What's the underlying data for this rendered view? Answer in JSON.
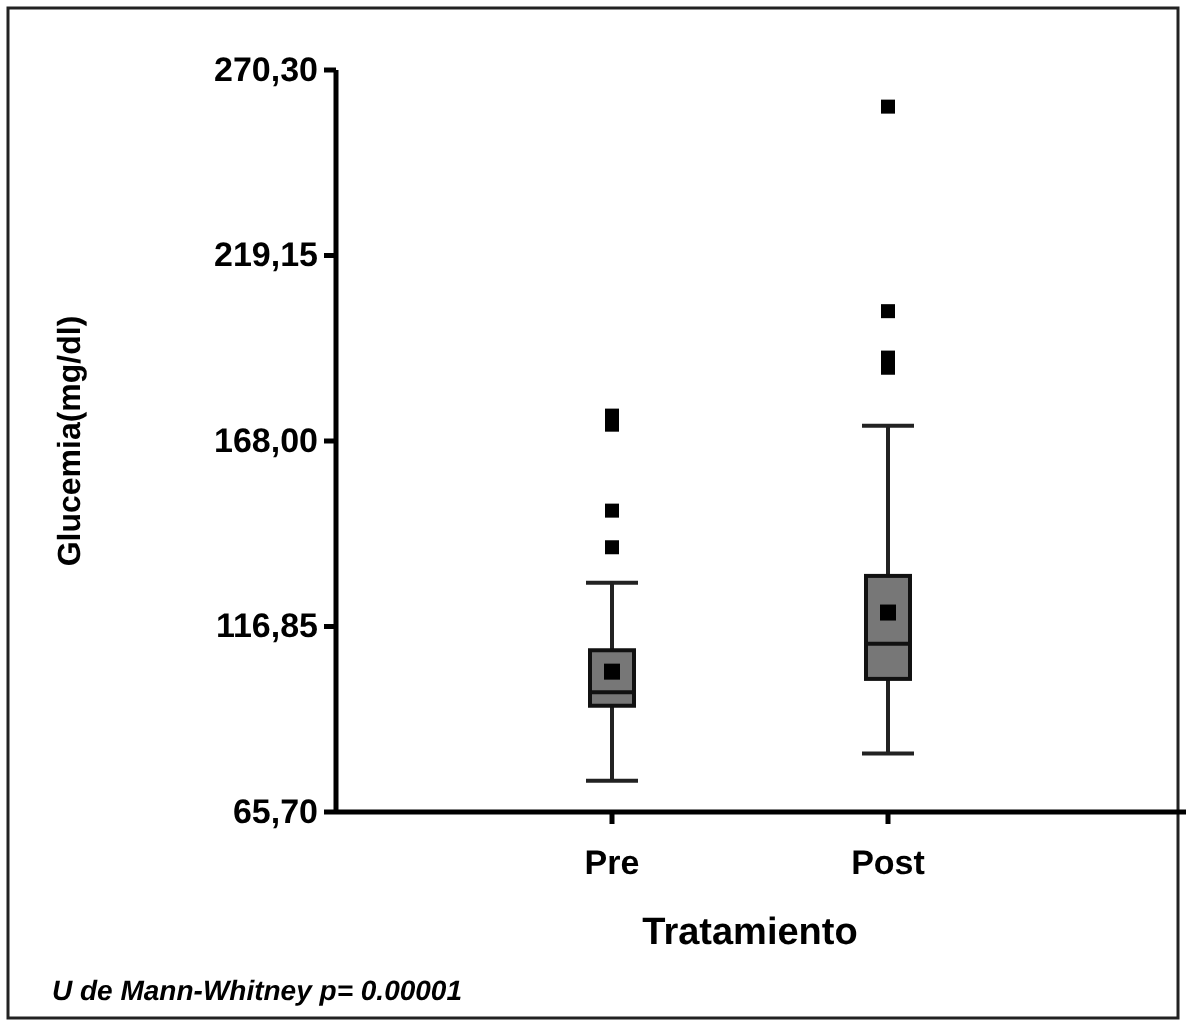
{
  "chart_data": {
    "type": "box",
    "xlabel": "Tratamiento",
    "ylabel": "Glucemia(mg/dl)",
    "categories": [
      "Pre",
      "Post"
    ],
    "ylim": [
      65.7,
      270.3
    ],
    "yticks": [
      {
        "value": 65.7,
        "label": "65,70"
      },
      {
        "value": 116.85,
        "label": "116,85"
      },
      {
        "value": 168,
        "label": "168,00"
      },
      {
        "value": 219.15,
        "label": "219,15"
      },
      {
        "value": 270.3,
        "label": "270,30"
      }
    ],
    "grid": false,
    "series": [
      {
        "color": "#777777",
        "boxes": [
          {
            "low": 74.3,
            "q1": 95.0,
            "median": 98.7,
            "q3": 110.3,
            "high": 128.9,
            "mean": 104.4,
            "outliers": [
              138.7,
              148.8,
              172.5,
              175.0
            ]
          },
          {
            "low": 81.8,
            "q1": 102.4,
            "median": 112.1,
            "q3": 130.8,
            "high": 172.2,
            "mean": 120.7,
            "outliers": [
              188.2,
              191.0,
              203.8,
              260.2
            ]
          }
        ]
      }
    ],
    "annotations": [
      "U de Mann-Whitney p= 0.00001"
    ]
  }
}
